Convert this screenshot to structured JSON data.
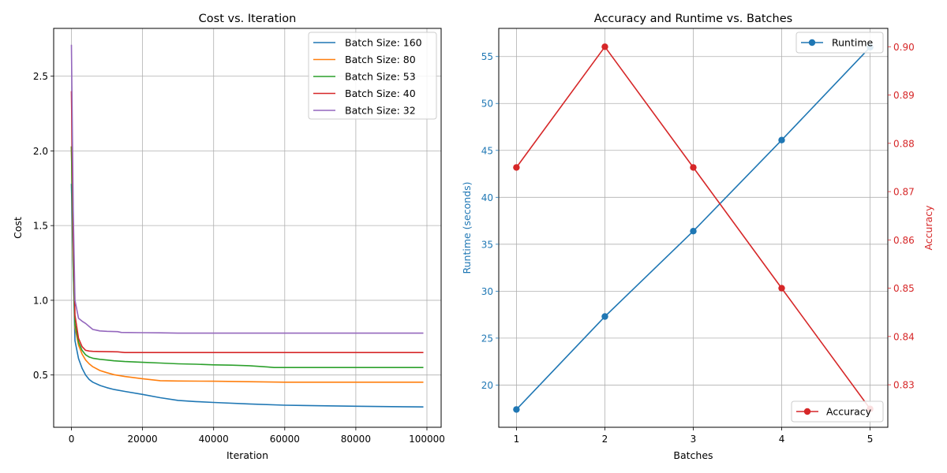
{
  "chart_data": [
    {
      "type": "line",
      "title": "Cost vs. Iteration",
      "xlabel": "Iteration",
      "ylabel": "Cost",
      "xlim": [
        -5000,
        104000
      ],
      "ylim": [
        0.15,
        2.82
      ],
      "xticks": [
        0,
        20000,
        40000,
        60000,
        80000,
        100000
      ],
      "yticks": [
        0.5,
        1.0,
        1.5,
        2.0,
        2.5
      ],
      "xtick_labels": [
        "0",
        "20000",
        "40000",
        "60000",
        "80000",
        "100000"
      ],
      "ytick_labels": [
        "0.5",
        "1.0",
        "1.5",
        "2.0",
        "2.5"
      ],
      "grid": true,
      "legend_position": "top-right",
      "series": [
        {
          "name": "Batch Size: 160",
          "color": "#1f77b4",
          "x": [
            0,
            500,
            1000,
            2000,
            3000,
            4000,
            5000,
            6000,
            8000,
            10000,
            12000,
            15000,
            20000,
            25000,
            30000,
            35000,
            40000,
            50000,
            60000,
            70000,
            80000,
            90000,
            99000
          ],
          "y": [
            1.78,
            1.2,
            0.73,
            0.61,
            0.545,
            0.5,
            0.47,
            0.452,
            0.43,
            0.415,
            0.403,
            0.39,
            0.37,
            0.348,
            0.33,
            0.322,
            0.316,
            0.306,
            0.298,
            0.294,
            0.291,
            0.288,
            0.286
          ]
        },
        {
          "name": "Batch Size: 80",
          "color": "#ff7f0e",
          "x": [
            0,
            500,
            1000,
            2000,
            3000,
            4000,
            5000,
            6000,
            8000,
            10000,
            12000,
            15000,
            20000,
            25000,
            30000,
            40000,
            50000,
            60000,
            80000,
            99000
          ],
          "y": [
            2.03,
            1.25,
            0.82,
            0.7,
            0.64,
            0.6,
            0.575,
            0.555,
            0.53,
            0.515,
            0.502,
            0.49,
            0.475,
            0.462,
            0.46,
            0.458,
            0.455,
            0.452,
            0.452,
            0.452
          ]
        },
        {
          "name": "Batch Size: 53",
          "color": "#2ca02c",
          "x": [
            0,
            500,
            1000,
            2000,
            3000,
            4000,
            5000,
            6000,
            8000,
            10000,
            12000,
            15000,
            20000,
            25000,
            30000,
            35000,
            40000,
            45000,
            50000,
            55000,
            57000,
            60000,
            80000,
            99000
          ],
          "y": [
            2.03,
            1.2,
            0.84,
            0.72,
            0.665,
            0.635,
            0.62,
            0.612,
            0.605,
            0.6,
            0.595,
            0.59,
            0.585,
            0.58,
            0.575,
            0.572,
            0.568,
            0.566,
            0.562,
            0.554,
            0.55,
            0.55,
            0.55,
            0.55
          ]
        },
        {
          "name": "Batch Size: 40",
          "color": "#d62728",
          "x": [
            0,
            500,
            1000,
            2000,
            3000,
            4000,
            5000,
            6000,
            8000,
            10000,
            13000,
            15000,
            20000,
            40000,
            60000,
            80000,
            99000
          ],
          "y": [
            2.4,
            1.4,
            0.9,
            0.745,
            0.69,
            0.665,
            0.66,
            0.658,
            0.657,
            0.656,
            0.655,
            0.65,
            0.65,
            0.65,
            0.65,
            0.65,
            0.65
          ]
        },
        {
          "name": "Batch Size: 32",
          "color": "#9467bd",
          "x": [
            0,
            500,
            1000,
            2000,
            3000,
            4000,
            5000,
            6000,
            7000,
            8000,
            10000,
            13000,
            14000,
            20000,
            25000,
            30000,
            40000,
            60000,
            80000,
            99000
          ],
          "y": [
            2.71,
            1.6,
            1.0,
            0.88,
            0.86,
            0.845,
            0.825,
            0.805,
            0.8,
            0.795,
            0.792,
            0.79,
            0.785,
            0.783,
            0.782,
            0.78,
            0.78,
            0.78,
            0.78,
            0.78
          ]
        }
      ]
    },
    {
      "type": "line",
      "title": "Accuracy and Runtime vs. Batches",
      "xlabel": "Batches",
      "ylabel": "Runtime (seconds)",
      "y2label": "Accuracy",
      "x": [
        1,
        2,
        3,
        4,
        5
      ],
      "xlim": [
        0.8,
        5.2
      ],
      "ylim": [
        15.5,
        58.0
      ],
      "y2lim": [
        0.8212,
        0.9038
      ],
      "xticks": [
        1,
        2,
        3,
        4,
        5
      ],
      "yticks": [
        20,
        25,
        30,
        35,
        40,
        45,
        50,
        55
      ],
      "y2ticks": [
        0.83,
        0.84,
        0.85,
        0.86,
        0.87,
        0.88,
        0.89,
        0.9
      ],
      "xtick_labels": [
        "1",
        "2",
        "3",
        "4",
        "5"
      ],
      "ytick_labels": [
        "20",
        "25",
        "30",
        "35",
        "40",
        "45",
        "50",
        "55"
      ],
      "y2tick_labels": [
        "0.83",
        "0.84",
        "0.85",
        "0.86",
        "0.87",
        "0.88",
        "0.89",
        "0.90"
      ],
      "grid": true,
      "series": [
        {
          "name": "Runtime",
          "color": "#1f77b4",
          "axis": "left",
          "legend_position": "top-right",
          "values": [
            17.4,
            27.3,
            36.4,
            46.1,
            56.0
          ]
        },
        {
          "name": "Accuracy",
          "color": "#d62728",
          "axis": "right",
          "legend_position": "bottom-right",
          "values": [
            0.875,
            0.9,
            0.875,
            0.85,
            0.825
          ]
        }
      ]
    }
  ]
}
